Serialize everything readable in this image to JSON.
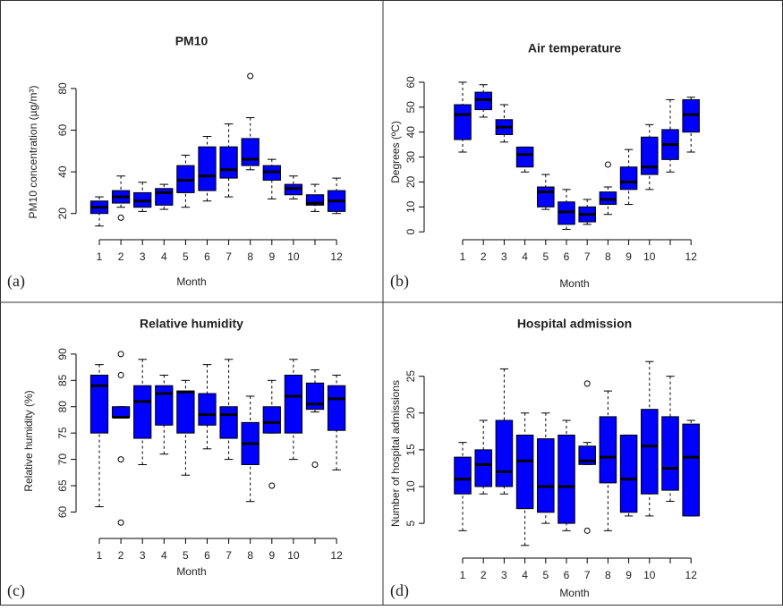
{
  "chart_data": [
    {
      "type": "box",
      "title": "PM10",
      "xlabel": "Month",
      "ylabel": "PM10 concentration (µg/m³)",
      "panel_label": "(a)",
      "categories": [
        "1",
        "2",
        "3",
        "4",
        "5",
        "6",
        "7",
        "8",
        "9",
        "10",
        null,
        "12"
      ],
      "color": "#0000ff",
      "ylim": [
        10,
        89
      ],
      "yticks": [
        20,
        40,
        60,
        80
      ],
      "boxes": [
        {
          "min": 14,
          "q1": 20,
          "median": 23,
          "q3": 26,
          "max": 28,
          "outliers": []
        },
        {
          "min": 23,
          "q1": 25,
          "median": 28,
          "q3": 31,
          "max": 38,
          "outliers": [
            18
          ]
        },
        {
          "min": 21,
          "q1": 23,
          "median": 26,
          "q3": 30,
          "max": 35,
          "outliers": []
        },
        {
          "min": 22,
          "q1": 24,
          "median": 30,
          "q3": 32,
          "max": 34,
          "outliers": []
        },
        {
          "min": 23,
          "q1": 30,
          "median": 36,
          "q3": 43,
          "max": 48,
          "outliers": []
        },
        {
          "min": 26,
          "q1": 31,
          "median": 38,
          "q3": 52,
          "max": 57,
          "outliers": []
        },
        {
          "min": 28,
          "q1": 37,
          "median": 41,
          "q3": 52,
          "max": 63,
          "outliers": []
        },
        {
          "min": 41,
          "q1": 43,
          "median": 46,
          "q3": 56,
          "max": 66,
          "outliers": [
            86
          ]
        },
        {
          "min": 27,
          "q1": 36,
          "median": 40,
          "q3": 43,
          "max": 46,
          "outliers": []
        },
        {
          "min": 27,
          "q1": 29,
          "median": 32,
          "q3": 34,
          "max": 38,
          "outliers": []
        },
        {
          "min": 21,
          "q1": 24,
          "median": 25,
          "q3": 29,
          "max": 34,
          "outliers": []
        },
        {
          "min": 20,
          "q1": 21,
          "median": 26,
          "q3": 31,
          "max": 37,
          "outliers": []
        }
      ]
    },
    {
      "type": "box",
      "title": "Air temperature",
      "xlabel": "Month",
      "ylabel": "Degrees (ºC)",
      "panel_label": "(b)",
      "categories": [
        "1",
        "2",
        "3",
        "4",
        "5",
        "6",
        "7",
        "8",
        "9",
        "10",
        null,
        "12"
      ],
      "color": "#0000ff",
      "ylim": [
        -1,
        65
      ],
      "yticks": [
        0,
        10,
        20,
        30,
        40,
        50,
        60
      ],
      "boxes": [
        {
          "min": 32,
          "q1": 37,
          "median": 47,
          "q3": 51,
          "max": 60,
          "outliers": []
        },
        {
          "min": 46,
          "q1": 49,
          "median": 53,
          "q3": 56,
          "max": 59,
          "outliers": []
        },
        {
          "min": 36,
          "q1": 39,
          "median": 42,
          "q3": 45,
          "max": 51,
          "outliers": []
        },
        {
          "min": 24,
          "q1": 26,
          "median": 31,
          "q3": 34,
          "max": 34,
          "outliers": []
        },
        {
          "min": 9,
          "q1": 10,
          "median": 16,
          "q3": 18,
          "max": 23,
          "outliers": []
        },
        {
          "min": 1,
          "q1": 3,
          "median": 8,
          "q3": 12,
          "max": 17,
          "outliers": []
        },
        {
          "min": 3,
          "q1": 4,
          "median": 7,
          "q3": 10,
          "max": 13,
          "outliers": []
        },
        {
          "min": 7,
          "q1": 11,
          "median": 13,
          "q3": 16,
          "max": 18,
          "outliers": [
            27
          ]
        },
        {
          "min": 11,
          "q1": 17,
          "median": 20,
          "q3": 26,
          "max": 33,
          "outliers": []
        },
        {
          "min": 17,
          "q1": 23,
          "median": 26,
          "q3": 38,
          "max": 43,
          "outliers": []
        },
        {
          "min": 24,
          "q1": 29,
          "median": 35,
          "q3": 41,
          "max": 53,
          "outliers": []
        },
        {
          "min": 32,
          "q1": 40,
          "median": 47,
          "q3": 53,
          "max": 54,
          "outliers": []
        }
      ]
    },
    {
      "type": "box",
      "title": "Relative humidity",
      "xlabel": "Month",
      "ylabel": "Relative humidity (%)",
      "panel_label": "(c)",
      "categories": [
        "1",
        "2",
        "3",
        "4",
        "5",
        "6",
        "7",
        "8",
        "9",
        "10",
        null,
        "12"
      ],
      "color": "#0000ff",
      "ylim": [
        56,
        91
      ],
      "yticks": [
        60,
        65,
        70,
        75,
        80,
        85,
        90
      ],
      "boxes": [
        {
          "min": 61,
          "q1": 75,
          "median": 84,
          "q3": 86,
          "max": 88,
          "outliers": []
        },
        {
          "min": 78,
          "q1": 78,
          "median": 78,
          "q3": 80,
          "max": 80,
          "outliers": [
            58,
            70,
            86,
            90
          ]
        },
        {
          "min": 69,
          "q1": 74,
          "median": 81,
          "q3": 84,
          "max": 89,
          "outliers": []
        },
        {
          "min": 71,
          "q1": 76.5,
          "median": 82.5,
          "q3": 84,
          "max": 86,
          "outliers": []
        },
        {
          "min": 67,
          "q1": 75,
          "median": 82.8,
          "q3": 83,
          "max": 85,
          "outliers": []
        },
        {
          "min": 72,
          "q1": 76.5,
          "median": 78.5,
          "q3": 82.5,
          "max": 88,
          "outliers": []
        },
        {
          "min": 70,
          "q1": 74,
          "median": 78.5,
          "q3": 80,
          "max": 89,
          "outliers": []
        },
        {
          "min": 62,
          "q1": 69,
          "median": 73,
          "q3": 77,
          "max": 82,
          "outliers": []
        },
        {
          "min": 75,
          "q1": 75,
          "median": 77,
          "q3": 80,
          "max": 85,
          "outliers": [
            65
          ]
        },
        {
          "min": 70,
          "q1": 75,
          "median": 82,
          "q3": 86,
          "max": 89,
          "outliers": []
        },
        {
          "min": 79,
          "q1": 79.5,
          "median": 80.5,
          "q3": 84.5,
          "max": 87,
          "outliers": [
            69
          ]
        },
        {
          "min": 68,
          "q1": 75.5,
          "median": 81.5,
          "q3": 84,
          "max": 86,
          "outliers": []
        }
      ]
    },
    {
      "type": "box",
      "title": "Hospital admission",
      "xlabel": "Month",
      "ylabel": "Number of hospital admissions",
      "panel_label": "(d)",
      "categories": [
        "1",
        "2",
        "3",
        "4",
        "5",
        "6",
        "7",
        "8",
        "9",
        "10",
        null,
        "12"
      ],
      "color": "#0000ff",
      "ylim": [
        1,
        28
      ],
      "yticks": [
        5,
        10,
        15,
        20,
        25
      ],
      "boxes": [
        {
          "min": 4,
          "q1": 9,
          "median": 11,
          "q3": 14,
          "max": 16,
          "outliers": []
        },
        {
          "min": 9,
          "q1": 10,
          "median": 13,
          "q3": 15,
          "max": 19,
          "outliers": []
        },
        {
          "min": 9,
          "q1": 10,
          "median": 12,
          "q3": 19,
          "max": 26,
          "outliers": []
        },
        {
          "min": 2,
          "q1": 7,
          "median": 13.5,
          "q3": 17,
          "max": 20,
          "outliers": []
        },
        {
          "min": 5,
          "q1": 6.5,
          "median": 10,
          "q3": 16.5,
          "max": 20,
          "outliers": []
        },
        {
          "min": 4,
          "q1": 5,
          "median": 10,
          "q3": 17,
          "max": 19,
          "outliers": []
        },
        {
          "min": 13,
          "q1": 13,
          "median": 13.5,
          "q3": 15.5,
          "max": 16,
          "outliers": [
            4,
            24
          ]
        },
        {
          "min": 4,
          "q1": 10.5,
          "median": 14,
          "q3": 19.5,
          "max": 23,
          "outliers": []
        },
        {
          "min": 6,
          "q1": 6.5,
          "median": 11,
          "q3": 17,
          "max": 17,
          "outliers": []
        },
        {
          "min": 6,
          "q1": 9,
          "median": 15.5,
          "q3": 20.5,
          "max": 27,
          "outliers": []
        },
        {
          "min": 8,
          "q1": 9.5,
          "median": 12.5,
          "q3": 19.5,
          "max": 25,
          "outliers": []
        },
        {
          "min": 6,
          "q1": 6,
          "median": 14,
          "q3": 18.5,
          "max": 19,
          "outliers": []
        }
      ]
    }
  ]
}
